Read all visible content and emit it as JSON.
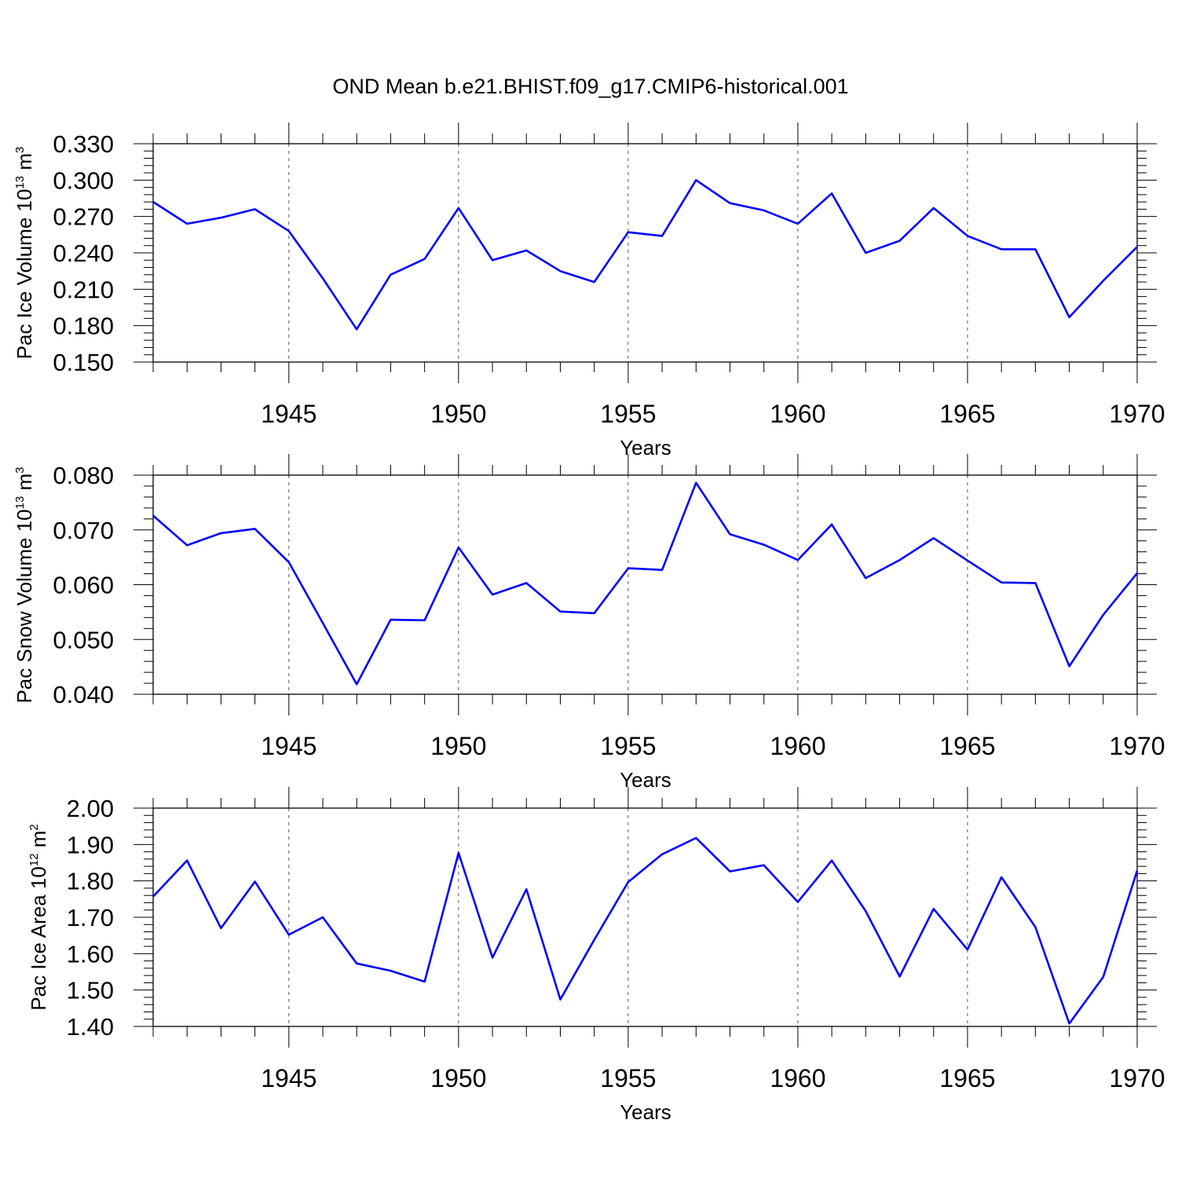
{
  "title": "OND Mean b.e21.BHIST.f09_g17.CMIP6-historical.001",
  "line_color": "#0000ff",
  "chart_data": [
    {
      "type": "line",
      "ylabel_prefix": "Pac Ice Volume 10",
      "ylabel_exp": "13",
      "ylabel_unit": " m",
      "ylabel_unit_exp": "3",
      "xlabel": "Years",
      "xlim": [
        1941,
        1970
      ],
      "ylim": [
        0.15,
        0.33
      ],
      "yticks": [
        "0.150",
        "0.180",
        "0.210",
        "0.240",
        "0.270",
        "0.300",
        "0.330"
      ],
      "xticks": [
        "1945",
        "1950",
        "1955",
        "1960",
        "1965",
        "1970"
      ],
      "grid": "dashed vertical at major x ticks",
      "x": [
        1941,
        1942,
        1943,
        1944,
        1945,
        1946,
        1947,
        1948,
        1949,
        1950,
        1951,
        1952,
        1953,
        1954,
        1955,
        1956,
        1957,
        1958,
        1959,
        1960,
        1961,
        1962,
        1963,
        1964,
        1965,
        1966,
        1967,
        1968,
        1969,
        1970
      ],
      "values": [
        0.282,
        0.264,
        0.269,
        0.276,
        0.258,
        0.219,
        0.177,
        0.222,
        0.235,
        0.277,
        0.234,
        0.242,
        0.225,
        0.216,
        0.257,
        0.254,
        0.3,
        0.281,
        0.275,
        0.264,
        0.289,
        0.24,
        0.25,
        0.277,
        0.254,
        0.243,
        0.243,
        0.187,
        0.217,
        0.245
      ]
    },
    {
      "type": "line",
      "ylabel_prefix": "Pac Snow Volume 10",
      "ylabel_exp": "13",
      "ylabel_unit": " m",
      "ylabel_unit_exp": "3",
      "xlabel": "Years",
      "xlim": [
        1941,
        1970
      ],
      "ylim": [
        0.04,
        0.08
      ],
      "yticks": [
        "0.040",
        "0.050",
        "0.060",
        "0.070",
        "0.080"
      ],
      "xticks": [
        "1945",
        "1950",
        "1955",
        "1960",
        "1965",
        "1970"
      ],
      "grid": "dashed vertical at major x ticks",
      "x": [
        1941,
        1942,
        1943,
        1944,
        1945,
        1946,
        1947,
        1948,
        1949,
        1950,
        1951,
        1952,
        1953,
        1954,
        1955,
        1956,
        1957,
        1958,
        1959,
        1960,
        1961,
        1962,
        1963,
        1964,
        1965,
        1966,
        1967,
        1968,
        1969,
        1970
      ],
      "values": [
        0.0726,
        0.0672,
        0.0694,
        0.0702,
        0.0641,
        0.053,
        0.0418,
        0.0536,
        0.0535,
        0.0668,
        0.0582,
        0.0603,
        0.0551,
        0.0548,
        0.063,
        0.0627,
        0.0786,
        0.0692,
        0.0673,
        0.0645,
        0.071,
        0.0612,
        0.0645,
        0.0685,
        0.0644,
        0.0604,
        0.0603,
        0.0451,
        0.0545,
        0.0621
      ]
    },
    {
      "type": "line",
      "ylabel_prefix": "Pac Ice Area 10",
      "ylabel_exp": "12",
      "ylabel_unit": " m",
      "ylabel_unit_exp": "2",
      "xlabel": "Years",
      "xlim": [
        1941,
        1970
      ],
      "ylim": [
        1.4,
        2.0
      ],
      "yticks": [
        "1.40",
        "1.50",
        "1.60",
        "1.70",
        "1.80",
        "1.90",
        "2.00"
      ],
      "xticks": [
        "1945",
        "1950",
        "1955",
        "1960",
        "1965",
        "1970"
      ],
      "grid": "dashed vertical at major x ticks",
      "x": [
        1941,
        1942,
        1943,
        1944,
        1945,
        1946,
        1947,
        1948,
        1949,
        1950,
        1951,
        1952,
        1953,
        1954,
        1955,
        1956,
        1957,
        1958,
        1959,
        1960,
        1961,
        1962,
        1963,
        1964,
        1965,
        1966,
        1967,
        1968,
        1969,
        1970
      ],
      "values": [
        1.757,
        1.856,
        1.67,
        1.798,
        1.652,
        1.7,
        1.573,
        1.553,
        1.523,
        1.877,
        1.589,
        1.777,
        1.474,
        1.638,
        1.797,
        1.873,
        1.918,
        1.826,
        1.843,
        1.742,
        1.856,
        1.717,
        1.537,
        1.723,
        1.611,
        1.81,
        1.673,
        1.408,
        1.536,
        1.828
      ]
    }
  ]
}
